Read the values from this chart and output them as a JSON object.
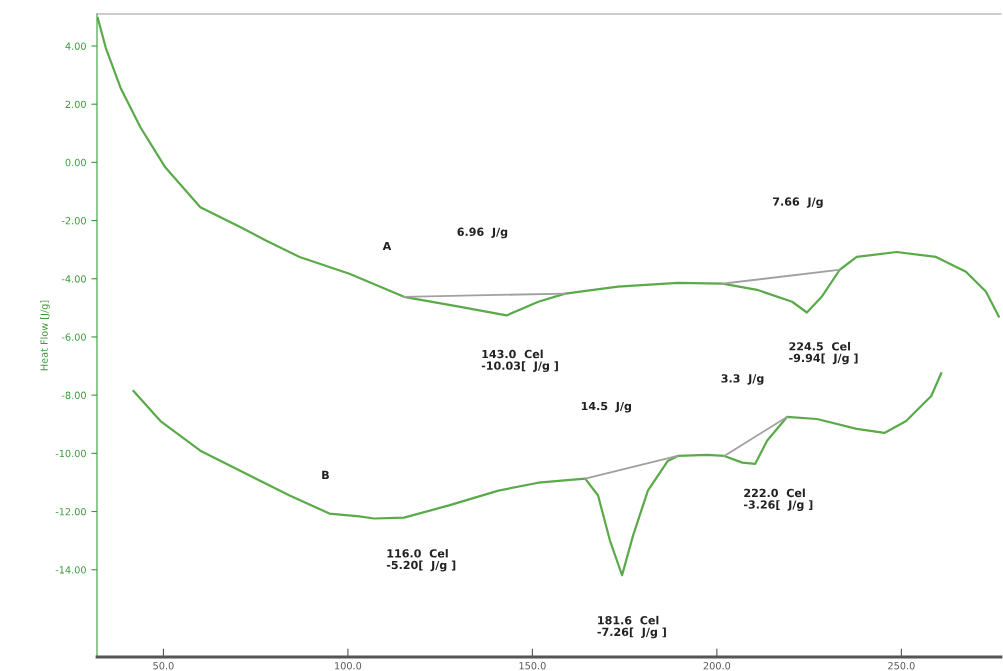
{
  "chart_data": {
    "type": "line",
    "ylabel": "Heat Flow [J/g]",
    "xlim": [
      32,
      277
    ],
    "ylim": [
      -17,
      5.1
    ],
    "xticks": [
      {
        "value": 50,
        "label": "50.0"
      },
      {
        "value": 100,
        "label": "100.0"
      },
      {
        "value": 150,
        "label": "150.0"
      },
      {
        "value": 200,
        "label": "200.0"
      },
      {
        "value": 250,
        "label": "250.0"
      }
    ],
    "yticks": [
      {
        "value": 4,
        "label": "4.00"
      },
      {
        "value": 2,
        "label": "2.00"
      },
      {
        "value": 0,
        "label": "0.00"
      },
      {
        "value": -2,
        "label": "-2.00"
      },
      {
        "value": -4,
        "label": "-4.00"
      },
      {
        "value": -6,
        "label": "-6.00"
      },
      {
        "value": -8,
        "label": "-8.00"
      },
      {
        "value": -10,
        "label": "-10.00"
      },
      {
        "value": -12,
        "label": "-12.00"
      },
      {
        "value": -14,
        "label": "-14.00"
      }
    ],
    "grid": false,
    "legend": false,
    "marker": "none",
    "line_style": "solid",
    "series": [
      {
        "color": "#5aaa4a",
        "x": [
          32.2,
          34.4,
          38.4,
          43.8,
          50.5,
          60.0,
          70.8,
          77.5,
          86.9,
          100.4,
          115.2,
          130.1,
          143.0,
          151.6,
          158.9,
          173.2,
          189.4,
          201.5,
          210.9,
          220.4,
          224.4,
          228.4,
          233.3,
          237.9,
          248.7,
          259.4,
          267.5,
          272.9,
          276.4
        ],
        "values": [
          4.96,
          3.93,
          2.56,
          1.2,
          -0.17,
          -1.54,
          -2.22,
          -2.67,
          -3.25,
          -3.83,
          -4.62,
          -4.96,
          -5.26,
          -4.79,
          -4.51,
          -4.27,
          -4.14,
          -4.17,
          -4.38,
          -4.79,
          -5.16,
          -4.62,
          -3.69,
          -3.25,
          -3.08,
          -3.25,
          -3.76,
          -4.44,
          -5.3
        ]
      },
      {
        "color": "#5aaa4a",
        "x": [
          41.9,
          49.2,
          60.0,
          73.5,
          84.2,
          95.0,
          103.1,
          107.1,
          115.2,
          127.4,
          140.8,
          151.6,
          164.3,
          167.8,
          171.0,
          174.3,
          177.3,
          181.3,
          186.7,
          189.4,
          197.4,
          202.0,
          206.9,
          210.4,
          213.6,
          219.0,
          227.1,
          237.9,
          245.4,
          251.3,
          258.1,
          260.8
        ],
        "values": [
          -7.86,
          -8.89,
          -9.91,
          -10.77,
          -11.45,
          -12.07,
          -12.17,
          -12.24,
          -12.21,
          -11.79,
          -11.28,
          -11.01,
          -10.87,
          -11.45,
          -12.99,
          -14.19,
          -12.82,
          -11.28,
          -10.26,
          -10.09,
          -10.05,
          -10.09,
          -10.32,
          -10.36,
          -9.57,
          -8.75,
          -8.82,
          -9.16,
          -9.3,
          -8.89,
          -8.03,
          -7.25
        ]
      },
      {
        "color": "#a0a0a0",
        "x": [
          115.2,
          158.9
        ],
        "values": [
          -4.62,
          -4.51
        ]
      },
      {
        "color": "#a0a0a0",
        "x": [
          201.5,
          233.3
        ],
        "values": [
          -4.17,
          -3.69
        ]
      },
      {
        "color": "#a0a0a0",
        "x": [
          164.3,
          189.4
        ],
        "values": [
          -10.87,
          -10.09
        ]
      },
      {
        "color": "#a0a0a0",
        "x": [
          202.0,
          219.0
        ],
        "values": [
          -10.09,
          -8.75
        ]
      }
    ],
    "annotations": [
      "A",
      "6.96  J/g",
      "7.66  J/g",
      "143.0  Cel\n-10.03[  J/g ]",
      "224.5  Cel\n-9.94[  J/g ]",
      "3.3  J/g",
      "14.5  J/g",
      "222.0  Cel\n-3.26[  J/g ]",
      "116.0  Cel\n-5.20[  J/g ]",
      "181.6  Cel\n-7.26[  J/g ]",
      "B"
    ]
  }
}
